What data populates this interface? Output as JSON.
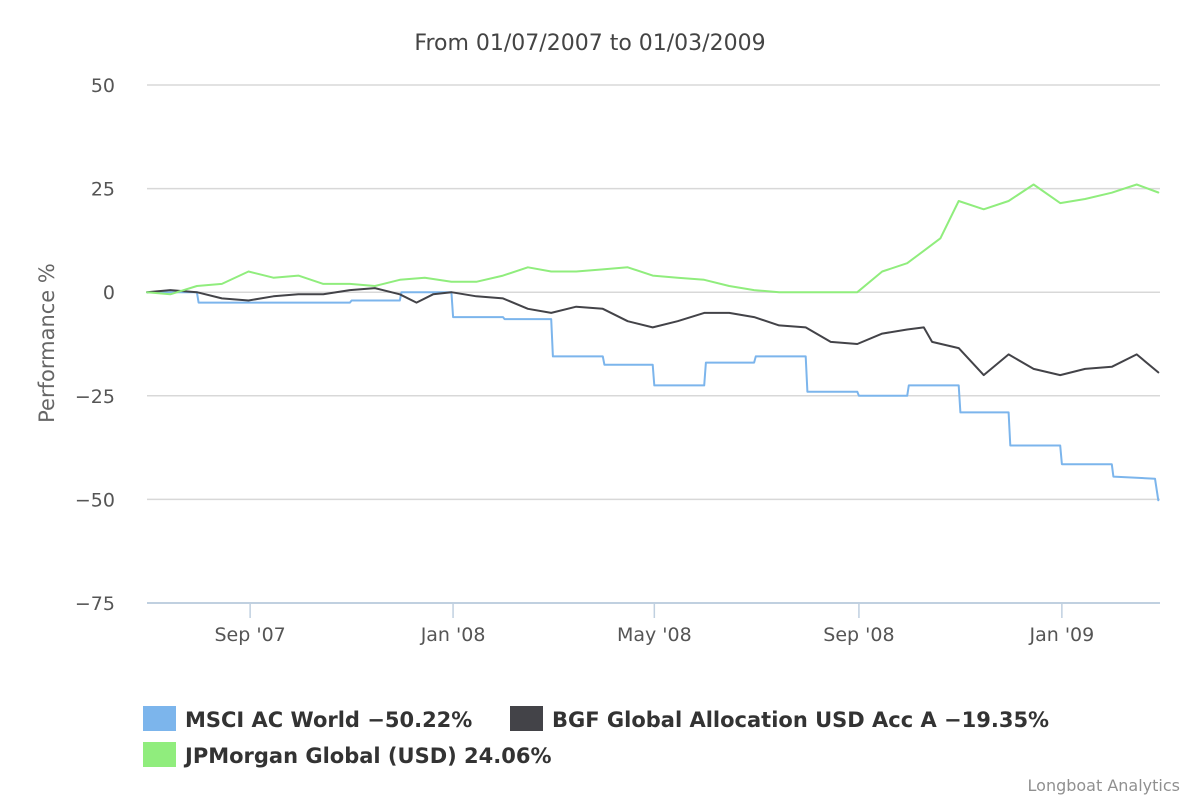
{
  "chart_data": {
    "type": "line",
    "title": "From 01/07/2007 to 01/03/2009",
    "ylabel": "Performance %",
    "xlabel": "",
    "ylim": [
      -75,
      50
    ],
    "yticks": [
      "50",
      "25",
      "0",
      "−25",
      "−50",
      "−75"
    ],
    "ytick_values": [
      50,
      25,
      0,
      -25,
      -50,
      -75
    ],
    "x_range": [
      "2007-07-01",
      "2009-03-01"
    ],
    "xticks": [
      {
        "label": "Sep '07",
        "date": "2007-09-01"
      },
      {
        "label": "Jan '08",
        "date": "2008-01-01"
      },
      {
        "label": "May '08",
        "date": "2008-05-01"
      },
      {
        "label": "Sep '08",
        "date": "2008-09-01"
      },
      {
        "label": "Jan '09",
        "date": "2009-01-01"
      }
    ],
    "grid": true,
    "legend_position": "bottom",
    "series": [
      {
        "name": "MSCI AC World",
        "legend_label": "MSCI AC World −50.22%",
        "color": "#7cb5ec",
        "x": [
          "2007-07-01",
          "2007-07-31",
          "2007-08-01",
          "2007-10-31",
          "2007-11-01",
          "2007-11-30",
          "2007-12-01",
          "2007-12-31",
          "2008-01-01",
          "2008-01-31",
          "2008-02-01",
          "2008-02-29",
          "2008-03-01",
          "2008-03-31",
          "2008-04-01",
          "2008-04-30",
          "2008-05-01",
          "2008-05-31",
          "2008-06-01",
          "2008-06-30",
          "2008-07-01",
          "2008-07-31",
          "2008-08-01",
          "2008-08-31",
          "2008-09-01",
          "2008-09-30",
          "2008-10-01",
          "2008-10-31",
          "2008-11-01",
          "2008-11-30",
          "2008-12-01",
          "2008-12-31",
          "2009-01-01",
          "2009-01-31",
          "2009-02-01",
          "2009-02-26",
          "2009-02-28"
        ],
        "y": [
          0,
          0,
          -2.5,
          -2.5,
          -2,
          -2,
          0,
          0,
          -6,
          -6,
          -6.5,
          -6.5,
          -15.5,
          -15.5,
          -17.5,
          -17.5,
          -22.5,
          -22.5,
          -17,
          -17,
          -15.5,
          -15.5,
          -24,
          -24,
          -25,
          -25,
          -22.5,
          -22.5,
          -29,
          -29,
          -37,
          -37,
          -41.5,
          -41.5,
          -44.5,
          -45,
          -50.22
        ]
      },
      {
        "name": "BGF Global Allocation USD Acc A",
        "legend_label": "BGF Global Allocation USD Acc A −19.35%",
        "color": "#434348",
        "x": [
          "2007-07-01",
          "2007-07-15",
          "2007-07-31",
          "2007-08-15",
          "2007-08-31",
          "2007-09-15",
          "2007-09-30",
          "2007-10-15",
          "2007-10-31",
          "2007-11-15",
          "2007-11-30",
          "2007-12-10",
          "2007-12-20",
          "2007-12-31",
          "2008-01-15",
          "2008-01-31",
          "2008-02-15",
          "2008-02-29",
          "2008-03-15",
          "2008-03-31",
          "2008-04-15",
          "2008-04-30",
          "2008-05-15",
          "2008-05-31",
          "2008-06-15",
          "2008-06-30",
          "2008-07-15",
          "2008-07-31",
          "2008-08-15",
          "2008-08-31",
          "2008-09-15",
          "2008-09-30",
          "2008-10-10",
          "2008-10-15",
          "2008-10-31",
          "2008-11-15",
          "2008-11-30",
          "2008-12-15",
          "2008-12-31",
          "2009-01-15",
          "2009-01-31",
          "2009-02-15",
          "2009-02-28"
        ],
        "y": [
          0,
          0.5,
          0,
          -1.5,
          -2,
          -1,
          -0.5,
          -0.5,
          0.5,
          1,
          -0.5,
          -2.5,
          -0.5,
          0,
          -1,
          -1.5,
          -4,
          -5,
          -3.5,
          -4,
          -7,
          -8.5,
          -7,
          -5,
          -5,
          -6,
          -8,
          -8.5,
          -12,
          -12.5,
          -10,
          -9,
          -8.5,
          -12,
          -13.5,
          -20,
          -15,
          -18.5,
          -20,
          -18.5,
          -18,
          -15,
          -19.35
        ]
      },
      {
        "name": "JPMorgan Global (USD)",
        "legend_label": "JPMorgan Global (USD) 24.06%",
        "color": "#90ed7d",
        "x": [
          "2007-07-01",
          "2007-07-15",
          "2007-07-31",
          "2007-08-15",
          "2007-08-31",
          "2007-09-15",
          "2007-09-30",
          "2007-10-15",
          "2007-10-31",
          "2007-11-15",
          "2007-11-30",
          "2007-12-15",
          "2007-12-31",
          "2008-01-15",
          "2008-01-31",
          "2008-02-15",
          "2008-02-29",
          "2008-03-15",
          "2008-03-31",
          "2008-04-15",
          "2008-04-30",
          "2008-05-15",
          "2008-05-31",
          "2008-06-15",
          "2008-06-30",
          "2008-07-15",
          "2008-07-31",
          "2008-08-15",
          "2008-08-31",
          "2008-09-15",
          "2008-09-30",
          "2008-10-10",
          "2008-10-20",
          "2008-10-31",
          "2008-11-15",
          "2008-11-30",
          "2008-12-15",
          "2008-12-31",
          "2009-01-15",
          "2009-01-31",
          "2009-02-15",
          "2009-02-28"
        ],
        "y": [
          0,
          -0.5,
          1.5,
          2,
          5,
          3.5,
          4,
          2,
          2,
          1.5,
          3,
          3.5,
          2.5,
          2.5,
          4,
          6,
          5,
          5,
          5.5,
          6,
          4,
          3.5,
          3,
          1.5,
          0.5,
          0,
          0,
          0,
          0,
          5,
          7,
          10,
          13,
          22,
          20,
          22,
          26,
          21.5,
          22.5,
          24,
          26,
          24.06
        ]
      }
    ],
    "credit": "Longboat Analytics"
  }
}
